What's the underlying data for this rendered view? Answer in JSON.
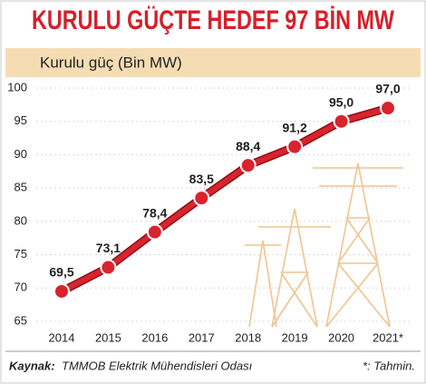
{
  "chart_data": {
    "type": "line",
    "title": "KURULU GÜÇTE HEDEF 97 BİN MW",
    "subtitle": "Kurulu güç (Bin MW)",
    "categories": [
      "2014",
      "2015",
      "2016",
      "2017",
      "2018",
      "2019",
      "2020",
      "2021*"
    ],
    "values": [
      69.5,
      73.1,
      78.4,
      83.5,
      88.4,
      91.2,
      95.0,
      97.0
    ],
    "value_labels": [
      "69,5",
      "73,1",
      "78,4",
      "83,5",
      "88,4",
      "91,2",
      "95,0",
      "97,0"
    ],
    "color": "#d9232d",
    "ylim": [
      65,
      100
    ],
    "yticks": [
      65,
      70,
      75,
      80,
      85,
      90,
      95,
      100
    ],
    "grid": true,
    "source_label": "Kaynak:",
    "source": "TMMOB Elektrik Mühendisleri Odası",
    "note": "*: Tahmin."
  }
}
